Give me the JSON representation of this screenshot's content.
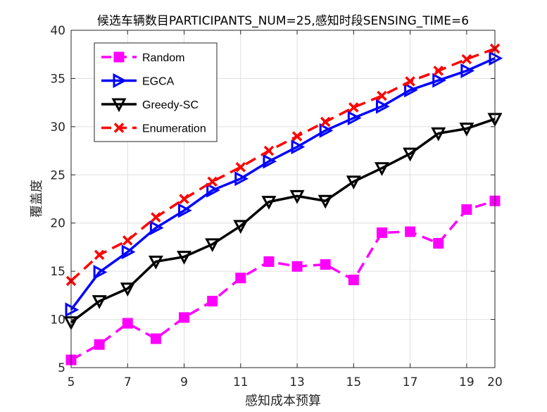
{
  "chart_data": {
    "type": "line",
    "title": "候选车辆数目PARTICIPANTS_NUM=25,感知时段SENSING_TIME=6",
    "xlabel": "感知成本预算",
    "ylabel": "覆盖度",
    "xlim": [
      5,
      20
    ],
    "ylim": [
      5,
      40
    ],
    "xticks": [
      5,
      7,
      9,
      11,
      13,
      15,
      17,
      19,
      20
    ],
    "yticks": [
      5,
      10,
      15,
      20,
      25,
      30,
      35,
      40
    ],
    "grid": true,
    "legend_position": "top-left",
    "x": [
      5,
      6,
      7,
      8,
      9,
      10,
      11,
      12,
      13,
      14,
      15,
      16,
      17,
      18,
      19,
      20
    ],
    "series": [
      {
        "name": "Random",
        "color": "#ff00ff",
        "line_style": "dashed",
        "marker": "square",
        "values": [
          5.8,
          7.4,
          9.6,
          8.0,
          10.2,
          11.9,
          14.3,
          16.0,
          15.5,
          15.7,
          14.1,
          19.0,
          19.1,
          17.9,
          21.4,
          22.3
        ]
      },
      {
        "name": "EGCA",
        "color": "#0000ff",
        "line_style": "solid",
        "marker": "triangle-right",
        "values": [
          11.0,
          14.9,
          17.0,
          19.5,
          21.3,
          23.4,
          24.6,
          26.4,
          27.9,
          29.6,
          30.9,
          32.1,
          33.8,
          34.8,
          35.8,
          37.1
        ]
      },
      {
        "name": "Greedy-SC",
        "color": "#000000",
        "line_style": "solid",
        "marker": "triangle-down",
        "values": [
          9.7,
          11.9,
          13.2,
          16.0,
          16.5,
          17.8,
          19.7,
          22.2,
          22.8,
          22.3,
          24.3,
          25.7,
          27.2,
          29.3,
          29.8,
          30.8
        ]
      },
      {
        "name": "Enumeration",
        "color": "#ff0000",
        "line_style": "dashed",
        "marker": "x",
        "values": [
          14.0,
          16.7,
          18.2,
          20.6,
          22.5,
          24.3,
          25.8,
          27.5,
          29.0,
          30.5,
          32.0,
          33.2,
          34.7,
          35.8,
          37.0,
          38.1
        ]
      }
    ]
  }
}
